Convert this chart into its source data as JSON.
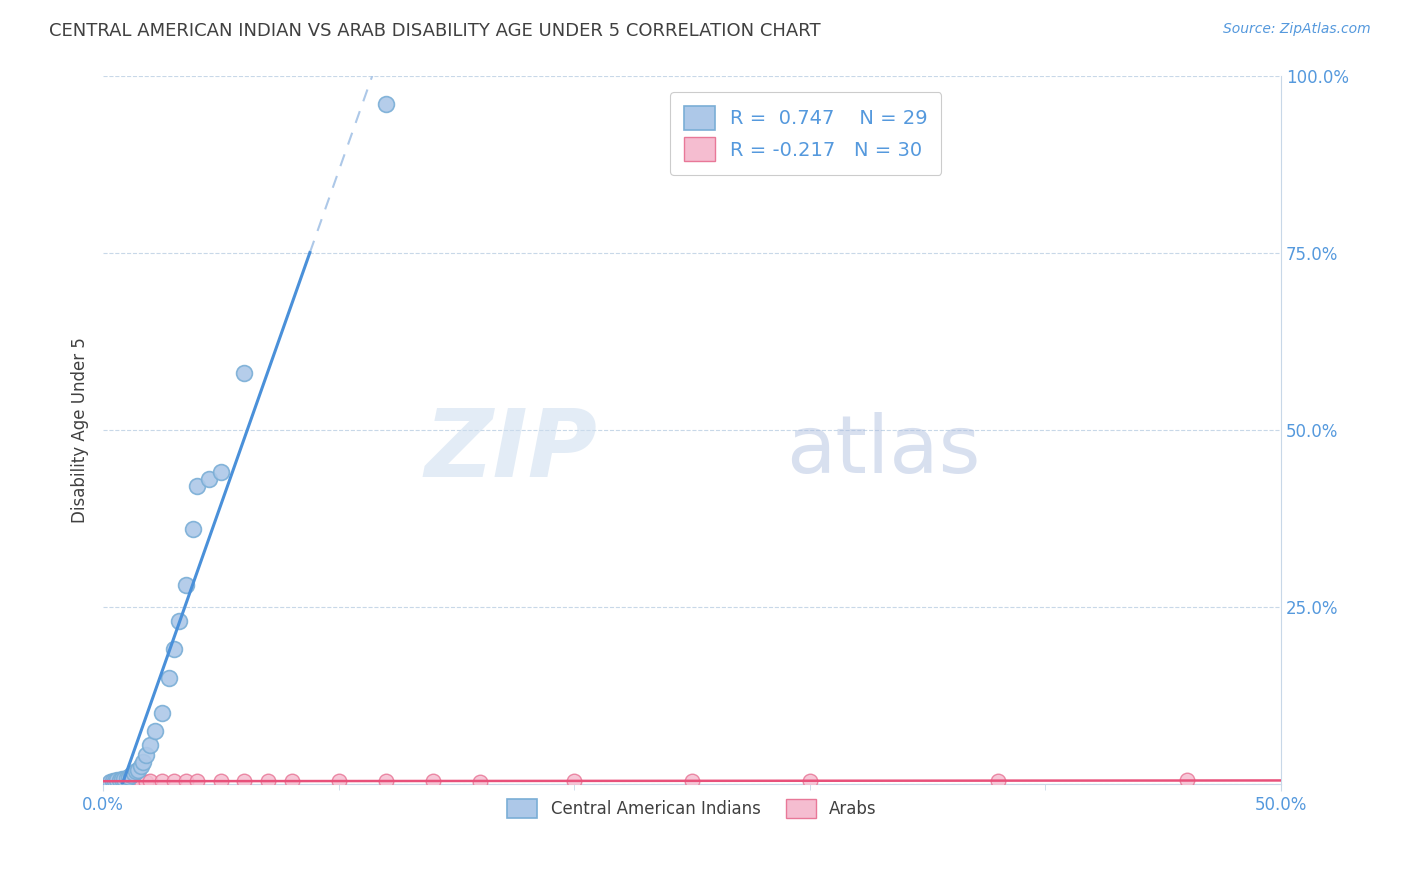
{
  "title": "CENTRAL AMERICAN INDIAN VS ARAB DISABILITY AGE UNDER 5 CORRELATION CHART",
  "source": "Source: ZipAtlas.com",
  "ylabel": "Disability Age Under 5",
  "xlim": [
    0.0,
    0.5
  ],
  "ylim": [
    0.0,
    1.0
  ],
  "yticks": [
    0.0,
    0.25,
    0.5,
    0.75,
    1.0
  ],
  "yticklabels": [
    "",
    "25.0%",
    "50.0%",
    "75.0%",
    "100.0%"
  ],
  "xtick_left": "0.0%",
  "xtick_right": "50.0%",
  "blue_color": "#adc8e8",
  "blue_edge": "#7aaed6",
  "pink_color": "#f5bdd0",
  "pink_edge": "#e87898",
  "line_blue": "#4a90d9",
  "line_pink": "#e8507a",
  "R_blue": 0.747,
  "N_blue": 29,
  "R_pink": -0.217,
  "N_pink": 30,
  "legend_label_blue": "Central American Indians",
  "legend_label_pink": "Arabs",
  "watermark_zip": "ZIP",
  "watermark_atlas": "atlas",
  "bg_color": "#ffffff",
  "grid_color": "#c8d8e8",
  "title_color": "#404040",
  "axis_color": "#5599dd",
  "blue_x": [
    0.003,
    0.004,
    0.005,
    0.006,
    0.007,
    0.008,
    0.009,
    0.01,
    0.011,
    0.012,
    0.013,
    0.014,
    0.015,
    0.016,
    0.017,
    0.018,
    0.02,
    0.022,
    0.025,
    0.028,
    0.03,
    0.032,
    0.035,
    0.038,
    0.04,
    0.045,
    0.05,
    0.06,
    0.12
  ],
  "blue_y": [
    0.003,
    0.004,
    0.004,
    0.005,
    0.005,
    0.006,
    0.007,
    0.008,
    0.01,
    0.012,
    0.015,
    0.018,
    0.02,
    0.025,
    0.03,
    0.04,
    0.055,
    0.075,
    0.1,
    0.15,
    0.19,
    0.23,
    0.28,
    0.36,
    0.42,
    0.43,
    0.44,
    0.58,
    0.96
  ],
  "pink_x": [
    0.003,
    0.004,
    0.005,
    0.006,
    0.007,
    0.008,
    0.009,
    0.01,
    0.012,
    0.014,
    0.016,
    0.018,
    0.02,
    0.025,
    0.03,
    0.035,
    0.04,
    0.05,
    0.06,
    0.07,
    0.08,
    0.1,
    0.12,
    0.14,
    0.16,
    0.2,
    0.25,
    0.3,
    0.38,
    0.46
  ],
  "pink_y": [
    0.003,
    0.003,
    0.003,
    0.004,
    0.003,
    0.003,
    0.004,
    0.004,
    0.004,
    0.003,
    0.004,
    0.003,
    0.004,
    0.004,
    0.004,
    0.004,
    0.004,
    0.004,
    0.004,
    0.004,
    0.004,
    0.004,
    0.004,
    0.004,
    0.003,
    0.004,
    0.004,
    0.004,
    0.004,
    0.005
  ]
}
